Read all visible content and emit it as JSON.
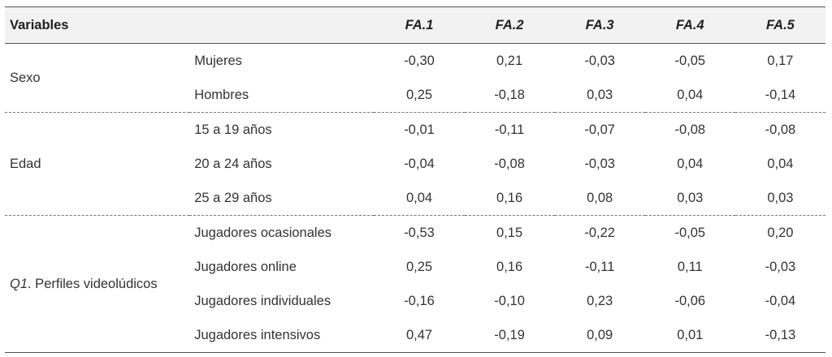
{
  "header": {
    "variables": "Variables",
    "fa": [
      "FA.1",
      "FA.2",
      "FA.3",
      "FA.4",
      "FA.5"
    ]
  },
  "groups": [
    {
      "label": "Sexo",
      "rows": [
        {
          "label": "Mujeres",
          "values": [
            "-0,30",
            "0,21",
            "-0,03",
            "-0,05",
            "0,17"
          ]
        },
        {
          "label": "Hombres",
          "values": [
            "0,25",
            "-0,18",
            "0,03",
            "0,04",
            "-0,14"
          ]
        }
      ]
    },
    {
      "label": "Edad",
      "rows": [
        {
          "label": "15 a 19 años",
          "values": [
            "-0,01",
            "-0,11",
            "-0,07",
            "-0,08",
            "-0,08"
          ]
        },
        {
          "label": "20 a 24 años",
          "values": [
            "-0,04",
            "-0,08",
            "-0,03",
            "0,04",
            "0,04"
          ]
        },
        {
          "label": "25 a 29 años",
          "values": [
            "0,04",
            "0,16",
            "0,08",
            "0,03",
            "0,03"
          ]
        }
      ]
    },
    {
      "label_prefix": "Q1",
      "label_rest": ". Perfiles videolúdicos",
      "rows": [
        {
          "label": "Jugadores ocasionales",
          "values": [
            "-0,53",
            "0,15",
            "-0,22",
            "-0,05",
            "0,20"
          ]
        },
        {
          "label": "Jugadores online",
          "values": [
            "0,25",
            "0,16",
            "-0,11",
            "0,11",
            "-0,03"
          ]
        },
        {
          "label": "Jugadores individuales",
          "values": [
            "-0,16",
            "-0,10",
            "0,23",
            "-0,06",
            "-0,04"
          ]
        },
        {
          "label": "Jugadores intensivos",
          "values": [
            "0,47",
            "-0,19",
            "0,09",
            "0,01",
            "-0,13"
          ]
        }
      ]
    }
  ]
}
